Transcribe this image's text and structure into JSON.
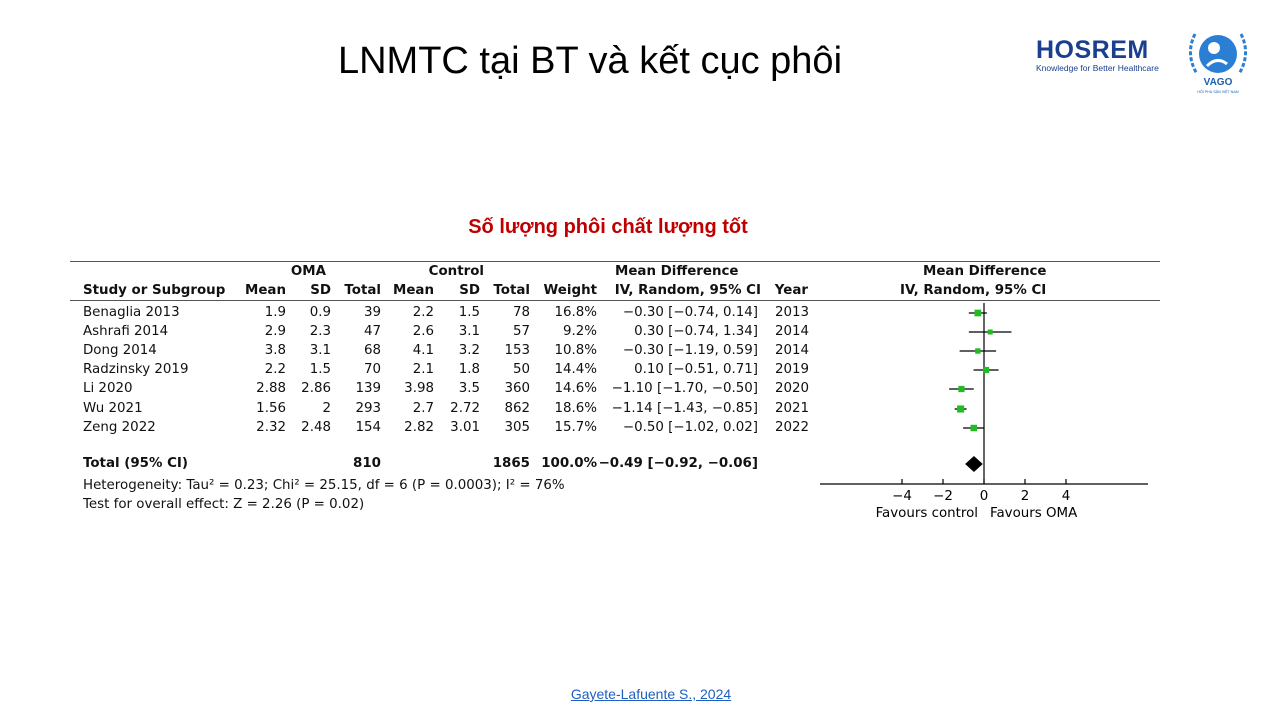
{
  "slide": {
    "title": "LNMTC tại BT và kết cục phôi",
    "subtitle": "Số lượng phôi chất lượng tốt",
    "citation": "Gayete-Lafuente S., 2024",
    "logos": {
      "hosrem": "HOSREM",
      "hosrem_tagline": "Knowledge for Better Healthcare",
      "vago": "VAGO",
      "vago_sub": "HỘI PHỤ SẢN VIỆT NAM"
    }
  },
  "chart_data": {
    "type": "forest",
    "title": "Số lượng phôi chất lượng tốt",
    "group_headers": {
      "oma": "OMA",
      "control": "Control",
      "md": "Mean Difference",
      "plot": "Mean Difference"
    },
    "columns": [
      "Study or Subgroup",
      "Mean",
      "SD",
      "Total",
      "Mean",
      "SD",
      "Total",
      "Weight",
      "IV, Random, 95% CI",
      "Year"
    ],
    "plot_header": "IV, Random, 95% CI",
    "studies": [
      {
        "name": "Benaglia 2013",
        "oma_mean": "1.9",
        "oma_sd": "0.9",
        "oma_total": "39",
        "ctl_mean": "2.2",
        "ctl_sd": "1.5",
        "ctl_total": "78",
        "weight": "16.8%",
        "ci_text": "−0.30 [−0.74, 0.14]",
        "year": "2013",
        "md": -0.3,
        "lo": -0.74,
        "hi": 0.14,
        "w": 16.8
      },
      {
        "name": "Ashrafi 2014",
        "oma_mean": "2.9",
        "oma_sd": "2.3",
        "oma_total": "47",
        "ctl_mean": "2.6",
        "ctl_sd": "3.1",
        "ctl_total": "57",
        "weight": "9.2%",
        "ci_text": "0.30 [−0.74, 1.34]",
        "year": "2014",
        "md": 0.3,
        "lo": -0.74,
        "hi": 1.34,
        "w": 9.2
      },
      {
        "name": "Dong 2014",
        "oma_mean": "3.8",
        "oma_sd": "3.1",
        "oma_total": "68",
        "ctl_mean": "4.1",
        "ctl_sd": "3.2",
        "ctl_total": "153",
        "weight": "10.8%",
        "ci_text": "−0.30 [−1.19, 0.59]",
        "year": "2014",
        "md": -0.3,
        "lo": -1.19,
        "hi": 0.59,
        "w": 10.8
      },
      {
        "name": "Radzinsky 2019",
        "oma_mean": "2.2",
        "oma_sd": "1.5",
        "oma_total": "70",
        "ctl_mean": "2.1",
        "ctl_sd": "1.8",
        "ctl_total": "50",
        "weight": "14.4%",
        "ci_text": "0.10 [−0.51, 0.71]",
        "year": "2019",
        "md": 0.1,
        "lo": -0.51,
        "hi": 0.71,
        "w": 14.4
      },
      {
        "name": "Li 2020",
        "oma_mean": "2.88",
        "oma_sd": "2.86",
        "oma_total": "139",
        "ctl_mean": "3.98",
        "ctl_sd": "3.5",
        "ctl_total": "360",
        "weight": "14.6%",
        "ci_text": "−1.10 [−1.70, −0.50]",
        "year": "2020",
        "md": -1.1,
        "lo": -1.7,
        "hi": -0.5,
        "w": 14.6
      },
      {
        "name": "Wu 2021",
        "oma_mean": "1.56",
        "oma_sd": "2",
        "oma_total": "293",
        "ctl_mean": "2.7",
        "ctl_sd": "2.72",
        "ctl_total": "862",
        "weight": "18.6%",
        "ci_text": "−1.14 [−1.43, −0.85]",
        "year": "2021",
        "md": -1.14,
        "lo": -1.43,
        "hi": -0.85,
        "w": 18.6
      },
      {
        "name": "Zeng 2022",
        "oma_mean": "2.32",
        "oma_sd": "2.48",
        "oma_total": "154",
        "ctl_mean": "2.82",
        "ctl_sd": "3.01",
        "ctl_total": "305",
        "weight": "15.7%",
        "ci_text": "−0.50 [−1.02, 0.02]",
        "year": "2022",
        "md": -0.5,
        "lo": -1.02,
        "hi": 0.02,
        "w": 15.7
      }
    ],
    "total": {
      "label": "Total (95% CI)",
      "oma_total": "810",
      "ctl_total": "1865",
      "weight": "100.0%",
      "ci_text": "−0.49 [−0.92, −0.06]",
      "md": -0.49,
      "lo": -0.92,
      "hi": -0.06
    },
    "heterogeneity": "Heterogeneity: Tau² = 0.23; Chi² = 25.15, df = 6 (P = 0.0003); I² = 76%",
    "overall_effect": "Test for overall effect: Z = 2.26 (P = 0.02)",
    "xaxis": {
      "ticks": [
        -4,
        -2,
        0,
        2,
        4
      ],
      "tick_labels": [
        "−4",
        "−2",
        "0",
        "2",
        "4"
      ],
      "range": [
        -8,
        8
      ],
      "left_label": "Favours control",
      "right_label": "Favours OMA"
    },
    "colors": {
      "marker": "#22bb22",
      "diamond": "#000000",
      "lines": "#000000"
    }
  }
}
